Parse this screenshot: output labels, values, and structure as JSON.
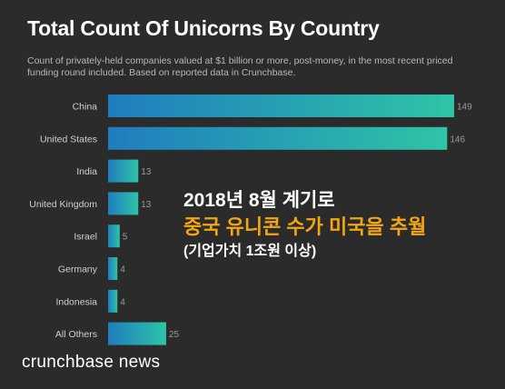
{
  "title": "Total Count Of Unicorns By Country",
  "subtitle": "Count of privately-held companies valued at $1 billion or more, post-money, in the most recent priced funding round included. Based on reported data in Crunchbase.",
  "overlay": {
    "line1": "2018년 8월 계기로",
    "line2": "중국 유니콘 수가 미국을 추월",
    "line3": "(기업가치 1조원 이상)"
  },
  "brand": "crunchbase news",
  "colors": {
    "background": "#2b2b2b",
    "bar_start": "#1f7dbf",
    "bar_end": "#2ec4a6",
    "highlight": "#f2a615"
  },
  "chart_data": {
    "type": "bar",
    "orientation": "horizontal",
    "categories": [
      "China",
      "United States",
      "India",
      "United Kingdom",
      "Israel",
      "Germany",
      "Indonesia",
      "All Others"
    ],
    "values": [
      149,
      146,
      13,
      13,
      5,
      4,
      4,
      25
    ],
    "xlim": [
      0,
      149
    ],
    "grid": false,
    "legend": "none"
  }
}
